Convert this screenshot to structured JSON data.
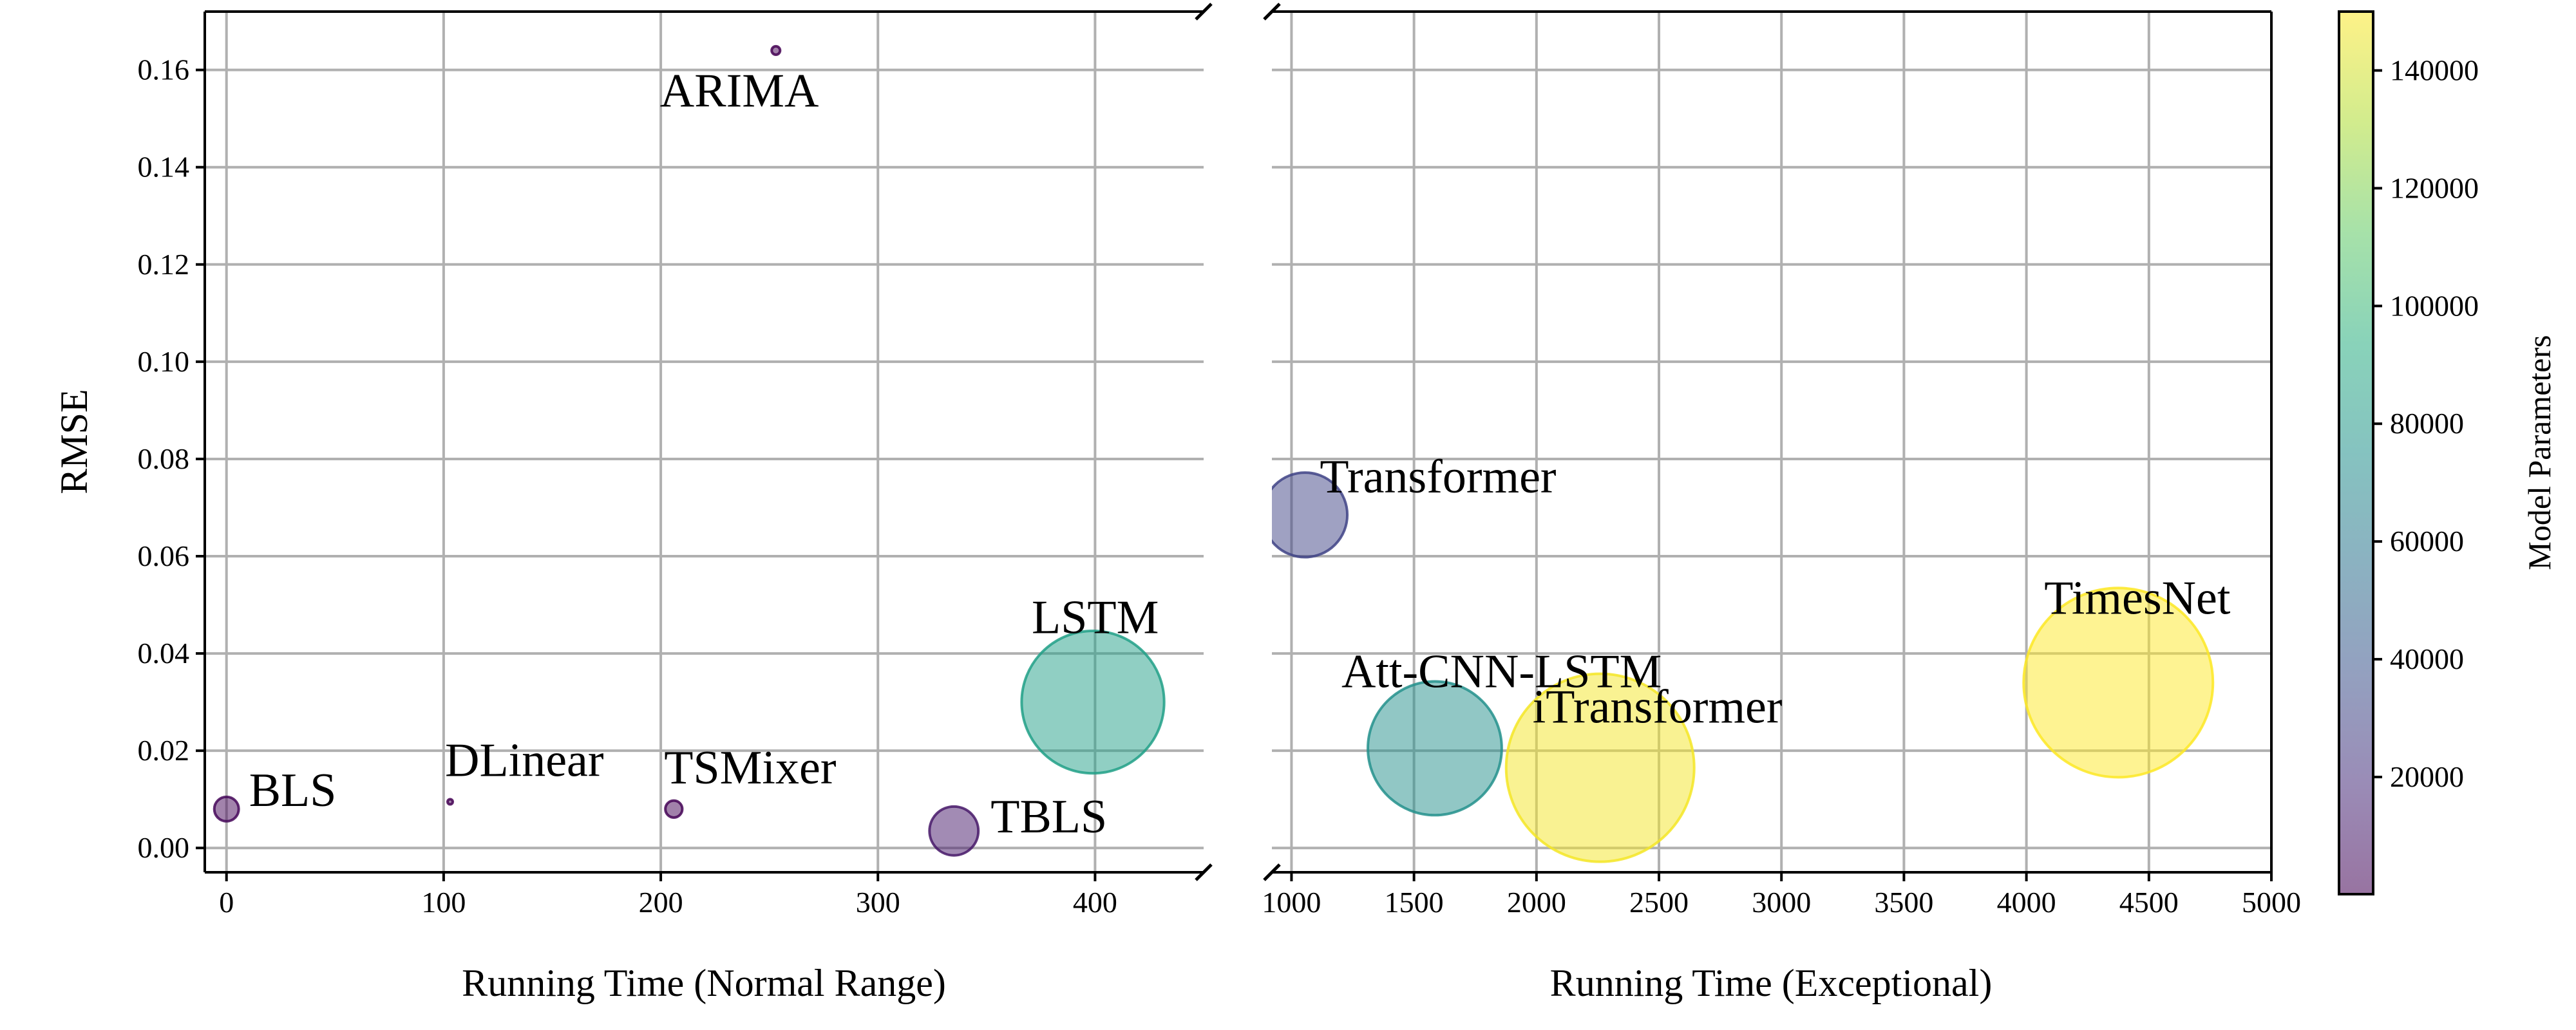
{
  "chart_data": {
    "type": "scatter",
    "subtype": "bubble",
    "title": "",
    "ylabel": "RMSE",
    "ylim": [
      -0.005,
      0.172
    ],
    "yticks": [
      0.0,
      0.02,
      0.04,
      0.06,
      0.08,
      0.1,
      0.12,
      0.14,
      0.16
    ],
    "ytick_labels": [
      "0.00",
      "0.02",
      "0.04",
      "0.06",
      "0.08",
      "0.10",
      "0.12",
      "0.14",
      "0.16"
    ],
    "grid": true,
    "broken_x_axis": true,
    "colormap": "viridis",
    "point_alpha": 0.5,
    "panels": [
      {
        "name": "normal",
        "xlabel": "Running Time (Normal Range)",
        "xlim": [
          -10,
          450
        ],
        "xticks": [
          0,
          100,
          200,
          300,
          400
        ],
        "points": [
          {
            "model": "BLS",
            "x": 0,
            "y": 0.008,
            "params": 2500
          },
          {
            "model": "DLinear",
            "x": 103,
            "y": 0.0095,
            "params": 100
          },
          {
            "model": "TSMixer",
            "x": 206,
            "y": 0.008,
            "params": 1200
          },
          {
            "model": "ARIMA",
            "x": 253,
            "y": 0.164,
            "params": 300
          },
          {
            "model": "TBLS",
            "x": 335,
            "y": 0.0035,
            "params": 10000
          },
          {
            "model": "LSTM",
            "x": 399,
            "y": 0.03,
            "params": 85000
          }
        ]
      },
      {
        "name": "exceptional",
        "xlabel": "Running Time (Exceptional)",
        "xlim": [
          920,
          5000
        ],
        "xticks": [
          1000,
          1500,
          2000,
          2500,
          3000,
          3500,
          4000,
          4500,
          5000
        ],
        "points": [
          {
            "model": "Transformer",
            "x": 1055,
            "y": 0.0685,
            "params": 30000
          },
          {
            "model": "Att-CNN-LSTM",
            "x": 1585,
            "y": 0.0205,
            "params": 75000
          },
          {
            "model": "iTransformer",
            "x": 2260,
            "y": 0.0165,
            "params": 148000
          },
          {
            "model": "TimesNet",
            "x": 4375,
            "y": 0.034,
            "params": 150000
          }
        ]
      }
    ],
    "colorbar": {
      "label": "Model Parameters",
      "range": [
        100,
        150000
      ],
      "ticks": [
        20000,
        40000,
        60000,
        80000,
        100000,
        120000,
        140000
      ]
    }
  }
}
